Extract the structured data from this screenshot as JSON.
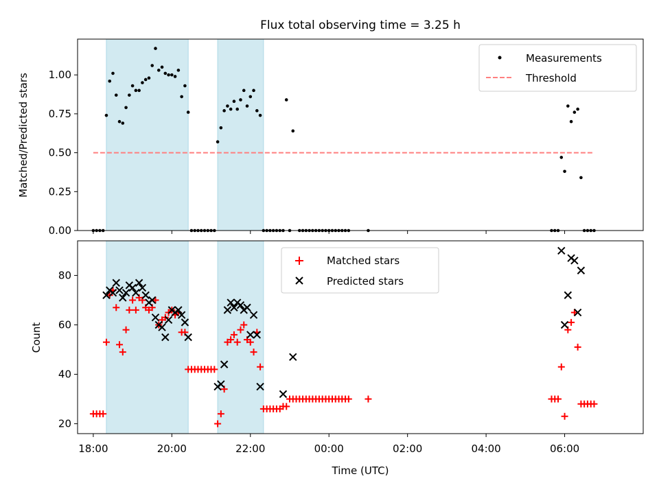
{
  "figure": {
    "title": "Flux total observing time = 3.25 h",
    "xlabel": "Time (UTC)"
  },
  "chart_data": [
    {
      "type": "scatter",
      "ylabel": "Matched/Predicted stars",
      "xlim": [
        "17:36",
        "08:00"
      ],
      "ylim": [
        0,
        1.23
      ],
      "yticks": [
        0.0,
        0.25,
        0.5,
        0.75,
        1.0
      ],
      "ytick_labels": [
        "0.00",
        "0.25",
        "0.50",
        "0.75",
        "1.00"
      ],
      "shaded_intervals": [
        [
          "18:20",
          "20:25"
        ],
        [
          "21:10",
          "22:20"
        ]
      ],
      "shade_color": "#add8e6",
      "legend_position": "upper right",
      "series": [
        {
          "name": "Measurements",
          "kind": "scatter",
          "color": "#000000",
          "points": [
            [
              "18:00",
              0
            ],
            [
              "18:05",
              0
            ],
            [
              "18:10",
              0
            ],
            [
              "18:15",
              0
            ],
            [
              "18:20",
              0.74
            ],
            [
              "18:25",
              0.96
            ],
            [
              "18:30",
              1.01
            ],
            [
              "18:35",
              0.87
            ],
            [
              "18:40",
              0.7
            ],
            [
              "18:45",
              0.69
            ],
            [
              "18:50",
              0.79
            ],
            [
              "18:55",
              0.87
            ],
            [
              "19:00",
              0.93
            ],
            [
              "19:05",
              0.9
            ],
            [
              "19:10",
              0.9
            ],
            [
              "19:15",
              0.95
            ],
            [
              "19:20",
              0.97
            ],
            [
              "19:25",
              0.98
            ],
            [
              "19:30",
              1.06
            ],
            [
              "19:35",
              1.17
            ],
            [
              "19:40",
              1.03
            ],
            [
              "19:45",
              1.05
            ],
            [
              "19:50",
              1.01
            ],
            [
              "19:55",
              1.0
            ],
            [
              "20:00",
              1.0
            ],
            [
              "20:05",
              0.99
            ],
            [
              "20:10",
              1.03
            ],
            [
              "20:15",
              0.86
            ],
            [
              "20:20",
              0.93
            ],
            [
              "20:25",
              0.76
            ],
            [
              "20:30",
              0
            ],
            [
              "20:35",
              0
            ],
            [
              "20:40",
              0
            ],
            [
              "20:45",
              0
            ],
            [
              "20:50",
              0
            ],
            [
              "20:55",
              0
            ],
            [
              "21:00",
              0
            ],
            [
              "21:05",
              0
            ],
            [
              "21:10",
              0.57
            ],
            [
              "21:15",
              0.66
            ],
            [
              "21:20",
              0.77
            ],
            [
              "21:25",
              0.8
            ],
            [
              "21:30",
              0.78
            ],
            [
              "21:35",
              0.83
            ],
            [
              "21:40",
              0.78
            ],
            [
              "21:45",
              0.84
            ],
            [
              "21:50",
              0.9
            ],
            [
              "21:55",
              0.8
            ],
            [
              "22:00",
              0.86
            ],
            [
              "22:05",
              0.9
            ],
            [
              "22:10",
              0.77
            ],
            [
              "22:15",
              0.74
            ],
            [
              "22:20",
              0
            ],
            [
              "22:25",
              0
            ],
            [
              "22:30",
              0
            ],
            [
              "22:35",
              0
            ],
            [
              "22:40",
              0
            ],
            [
              "22:45",
              0
            ],
            [
              "22:50",
              0
            ],
            [
              "22:55",
              0.84
            ],
            [
              "23:05",
              0.64
            ],
            [
              "23:00",
              0
            ],
            [
              "23:15",
              0
            ],
            [
              "23:20",
              0
            ],
            [
              "23:25",
              0
            ],
            [
              "23:30",
              0
            ],
            [
              "23:35",
              0
            ],
            [
              "23:40",
              0
            ],
            [
              "23:45",
              0
            ],
            [
              "23:50",
              0
            ],
            [
              "23:55",
              0
            ],
            [
              "00:00",
              0
            ],
            [
              "00:05",
              0
            ],
            [
              "00:10",
              0
            ],
            [
              "00:15",
              0
            ],
            [
              "00:20",
              0
            ],
            [
              "00:25",
              0
            ],
            [
              "00:30",
              0
            ],
            [
              "01:00",
              0
            ],
            [
              "05:40",
              0
            ],
            [
              "05:45",
              0
            ],
            [
              "05:50",
              0
            ],
            [
              "05:55",
              0.47
            ],
            [
              "06:00",
              0.38
            ],
            [
              "06:05",
              0.8
            ],
            [
              "06:10",
              0.7
            ],
            [
              "06:15",
              0.76
            ],
            [
              "06:20",
              0.78
            ],
            [
              "06:25",
              0.34
            ],
            [
              "06:30",
              0
            ],
            [
              "06:35",
              0
            ],
            [
              "06:40",
              0
            ],
            [
              "06:45",
              0
            ]
          ]
        },
        {
          "name": "Threshold",
          "kind": "dashed-line",
          "color": "#ff7f7f",
          "points": [
            [
              "18:00",
              0.5
            ],
            [
              "06:45",
              0.5
            ]
          ]
        }
      ]
    },
    {
      "type": "scatter",
      "ylabel": "Count",
      "xlim": [
        "17:36",
        "08:00"
      ],
      "ylim": [
        16,
        94
      ],
      "yticks": [
        20,
        40,
        60,
        80
      ],
      "ytick_labels": [
        "20",
        "40",
        "60",
        "80"
      ],
      "xticks": [
        "18:00",
        "20:00",
        "22:00",
        "00:00",
        "02:00",
        "04:00",
        "06:00"
      ],
      "xtick_labels": [
        "18:00",
        "20:00",
        "22:00",
        "00:00",
        "02:00",
        "04:00",
        "06:00"
      ],
      "shaded_intervals": [
        [
          "18:20",
          "20:25"
        ],
        [
          "21:10",
          "22:20"
        ]
      ],
      "shade_color": "#add8e6",
      "legend_position": "upper center",
      "series": [
        {
          "name": "Matched stars",
          "kind": "plus",
          "color": "#ff0000",
          "points": [
            [
              "18:00",
              24
            ],
            [
              "18:05",
              24
            ],
            [
              "18:10",
              24
            ],
            [
              "18:15",
              24
            ],
            [
              "18:20",
              53
            ],
            [
              "18:25",
              72
            ],
            [
              "18:30",
              74
            ],
            [
              "18:35",
              67
            ],
            [
              "18:40",
              52
            ],
            [
              "18:45",
              49
            ],
            [
              "18:50",
              58
            ],
            [
              "18:55",
              66
            ],
            [
              "19:00",
              70
            ],
            [
              "19:05",
              66
            ],
            [
              "19:10",
              71
            ],
            [
              "19:15",
              70
            ],
            [
              "19:20",
              67
            ],
            [
              "19:25",
              66
            ],
            [
              "19:30",
              67
            ],
            [
              "19:35",
              70
            ],
            [
              "19:40",
              60
            ],
            [
              "19:45",
              62
            ],
            [
              "19:50",
              63
            ],
            [
              "19:55",
              65
            ],
            [
              "20:00",
              66
            ],
            [
              "20:05",
              64
            ],
            [
              "20:10",
              65
            ],
            [
              "20:15",
              57
            ],
            [
              "20:20",
              57
            ],
            [
              "20:25",
              42
            ],
            [
              "20:30",
              42
            ],
            [
              "20:35",
              42
            ],
            [
              "20:40",
              42
            ],
            [
              "20:45",
              42
            ],
            [
              "20:50",
              42
            ],
            [
              "20:55",
              42
            ],
            [
              "21:00",
              42
            ],
            [
              "21:05",
              42
            ],
            [
              "21:10",
              20
            ],
            [
              "21:15",
              24
            ],
            [
              "21:20",
              34
            ],
            [
              "21:25",
              53
            ],
            [
              "21:30",
              54
            ],
            [
              "21:35",
              56
            ],
            [
              "21:40",
              53
            ],
            [
              "21:45",
              58
            ],
            [
              "21:50",
              60
            ],
            [
              "21:55",
              54
            ],
            [
              "22:00",
              53
            ],
            [
              "22:05",
              49
            ],
            [
              "22:10",
              57
            ],
            [
              "22:15",
              43
            ],
            [
              "22:20",
              26
            ],
            [
              "22:25",
              26
            ],
            [
              "22:30",
              26
            ],
            [
              "22:35",
              26
            ],
            [
              "22:40",
              26
            ],
            [
              "22:45",
              26
            ],
            [
              "22:50",
              27
            ],
            [
              "22:55",
              27
            ],
            [
              "23:00",
              30
            ],
            [
              "23:05",
              30
            ],
            [
              "23:10",
              30
            ],
            [
              "23:15",
              30
            ],
            [
              "23:20",
              30
            ],
            [
              "23:25",
              30
            ],
            [
              "23:30",
              30
            ],
            [
              "23:35",
              30
            ],
            [
              "23:40",
              30
            ],
            [
              "23:45",
              30
            ],
            [
              "23:50",
              30
            ],
            [
              "23:55",
              30
            ],
            [
              "00:00",
              30
            ],
            [
              "00:05",
              30
            ],
            [
              "00:10",
              30
            ],
            [
              "00:15",
              30
            ],
            [
              "00:20",
              30
            ],
            [
              "00:25",
              30
            ],
            [
              "00:30",
              30
            ],
            [
              "01:00",
              30
            ],
            [
              "05:40",
              30
            ],
            [
              "05:45",
              30
            ],
            [
              "05:50",
              30
            ],
            [
              "05:55",
              43
            ],
            [
              "06:00",
              23
            ],
            [
              "06:05",
              58
            ],
            [
              "06:10",
              61
            ],
            [
              "06:15",
              65
            ],
            [
              "06:20",
              51
            ],
            [
              "06:25",
              28
            ],
            [
              "06:30",
              28
            ],
            [
              "06:35",
              28
            ],
            [
              "06:40",
              28
            ],
            [
              "06:45",
              28
            ]
          ]
        },
        {
          "name": "Predicted stars",
          "kind": "cross",
          "color": "#000000",
          "points": [
            [
              "18:20",
              72
            ],
            [
              "18:25",
              74
            ],
            [
              "18:30",
              73
            ],
            [
              "18:35",
              77
            ],
            [
              "18:40",
              74
            ],
            [
              "18:45",
              71
            ],
            [
              "18:50",
              73
            ],
            [
              "18:55",
              76
            ],
            [
              "19:00",
              75
            ],
            [
              "19:05",
              73
            ],
            [
              "19:10",
              77
            ],
            [
              "19:15",
              75
            ],
            [
              "19:20",
              72
            ],
            [
              "19:25",
              69
            ],
            [
              "19:30",
              70
            ],
            [
              "19:35",
              63
            ],
            [
              "19:40",
              60
            ],
            [
              "19:45",
              59
            ],
            [
              "19:50",
              55
            ],
            [
              "19:55",
              62
            ],
            [
              "20:00",
              66
            ],
            [
              "20:05",
              65
            ],
            [
              "20:10",
              66
            ],
            [
              "20:15",
              64
            ],
            [
              "20:20",
              61
            ],
            [
              "20:25",
              55
            ],
            [
              "21:10",
              35
            ],
            [
              "21:15",
              36
            ],
            [
              "21:20",
              44
            ],
            [
              "21:25",
              66
            ],
            [
              "21:30",
              69
            ],
            [
              "21:35",
              67
            ],
            [
              "21:40",
              69
            ],
            [
              "21:45",
              68
            ],
            [
              "21:50",
              66
            ],
            [
              "21:55",
              67
            ],
            [
              "22:00",
              56
            ],
            [
              "22:05",
              64
            ],
            [
              "22:10",
              56
            ],
            [
              "22:15",
              35
            ],
            [
              "22:50",
              32
            ],
            [
              "23:05",
              47
            ],
            [
              "05:55",
              90
            ],
            [
              "06:00",
              60
            ],
            [
              "06:05",
              72
            ],
            [
              "06:10",
              87
            ],
            [
              "06:15",
              86
            ],
            [
              "06:20",
              65
            ],
            [
              "06:25",
              82
            ]
          ]
        }
      ]
    }
  ]
}
